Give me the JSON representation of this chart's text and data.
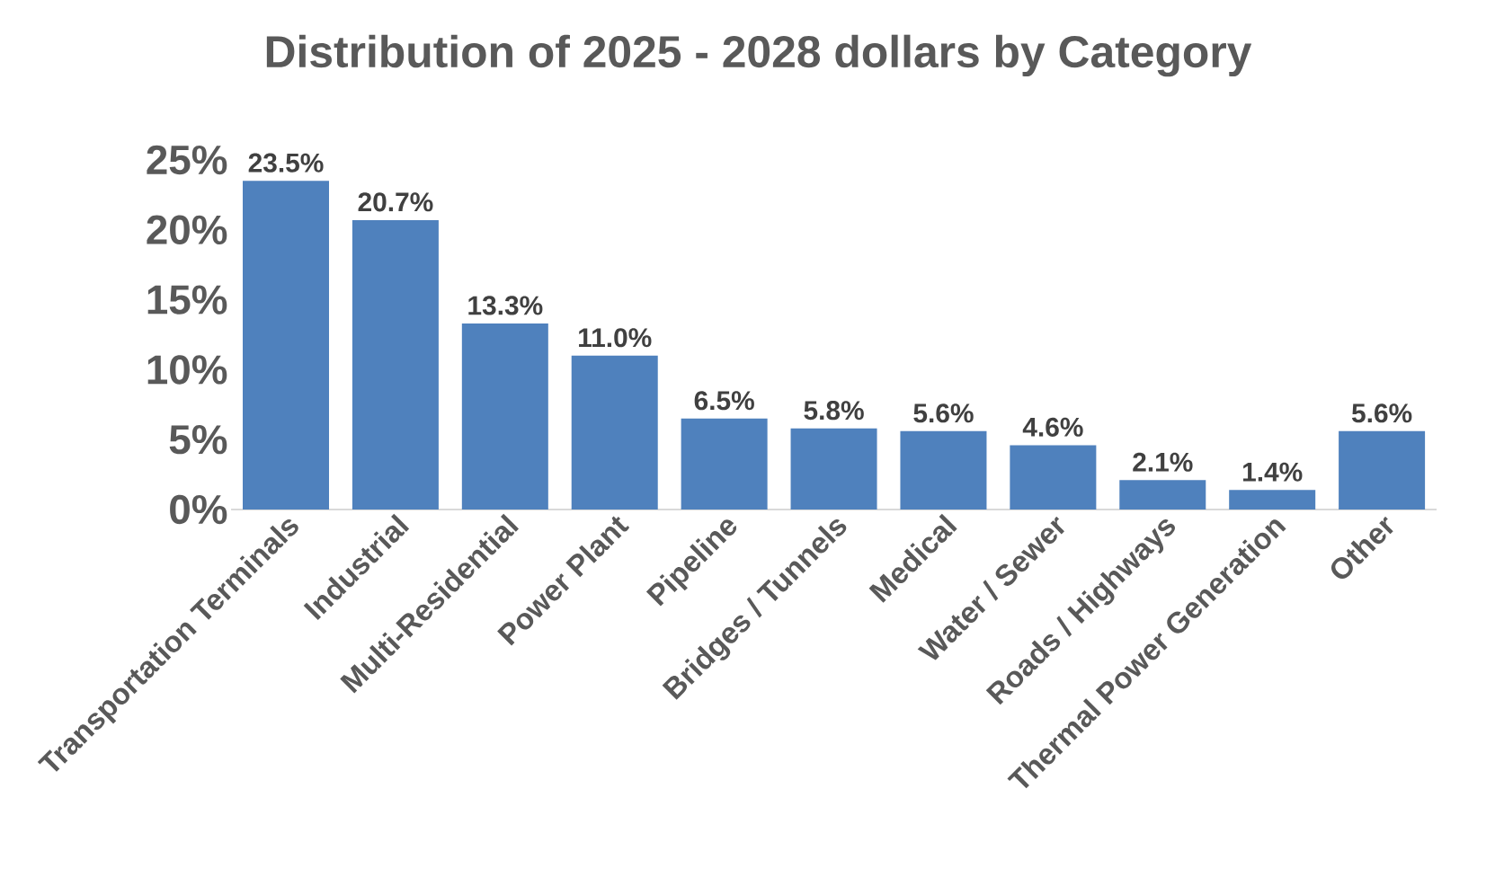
{
  "chart_data": {
    "type": "bar",
    "title": "Distribution of 2025 - 2028 dollars by Category",
    "categories": [
      "Transportation Terminals",
      "Industrial",
      "Multi-Residential",
      "Power Plant",
      "Pipeline",
      "Bridges / Tunnels",
      "Medical",
      "Water / Sewer",
      "Roads / Highways",
      "Thermal Power Generation",
      "Other"
    ],
    "values": [
      23.5,
      20.7,
      13.3,
      11.0,
      6.5,
      5.8,
      5.6,
      4.6,
      2.1,
      1.4,
      5.6
    ],
    "value_labels": [
      "23.5%",
      "20.7%",
      "13.3%",
      "11.0%",
      "6.5%",
      "5.8%",
      "5.6%",
      "4.6%",
      "2.1%",
      "1.4%",
      "5.6%"
    ],
    "color": "#4f81bd",
    "ylim": [
      0,
      25
    ],
    "yticks": [
      {
        "value": 0,
        "label": "0%"
      },
      {
        "value": 5,
        "label": "5%"
      },
      {
        "value": 10,
        "label": "10%"
      },
      {
        "value": 15,
        "label": "15%"
      },
      {
        "value": 20,
        "label": "20%"
      },
      {
        "value": 25,
        "label": "25%"
      }
    ],
    "grid": false
  }
}
